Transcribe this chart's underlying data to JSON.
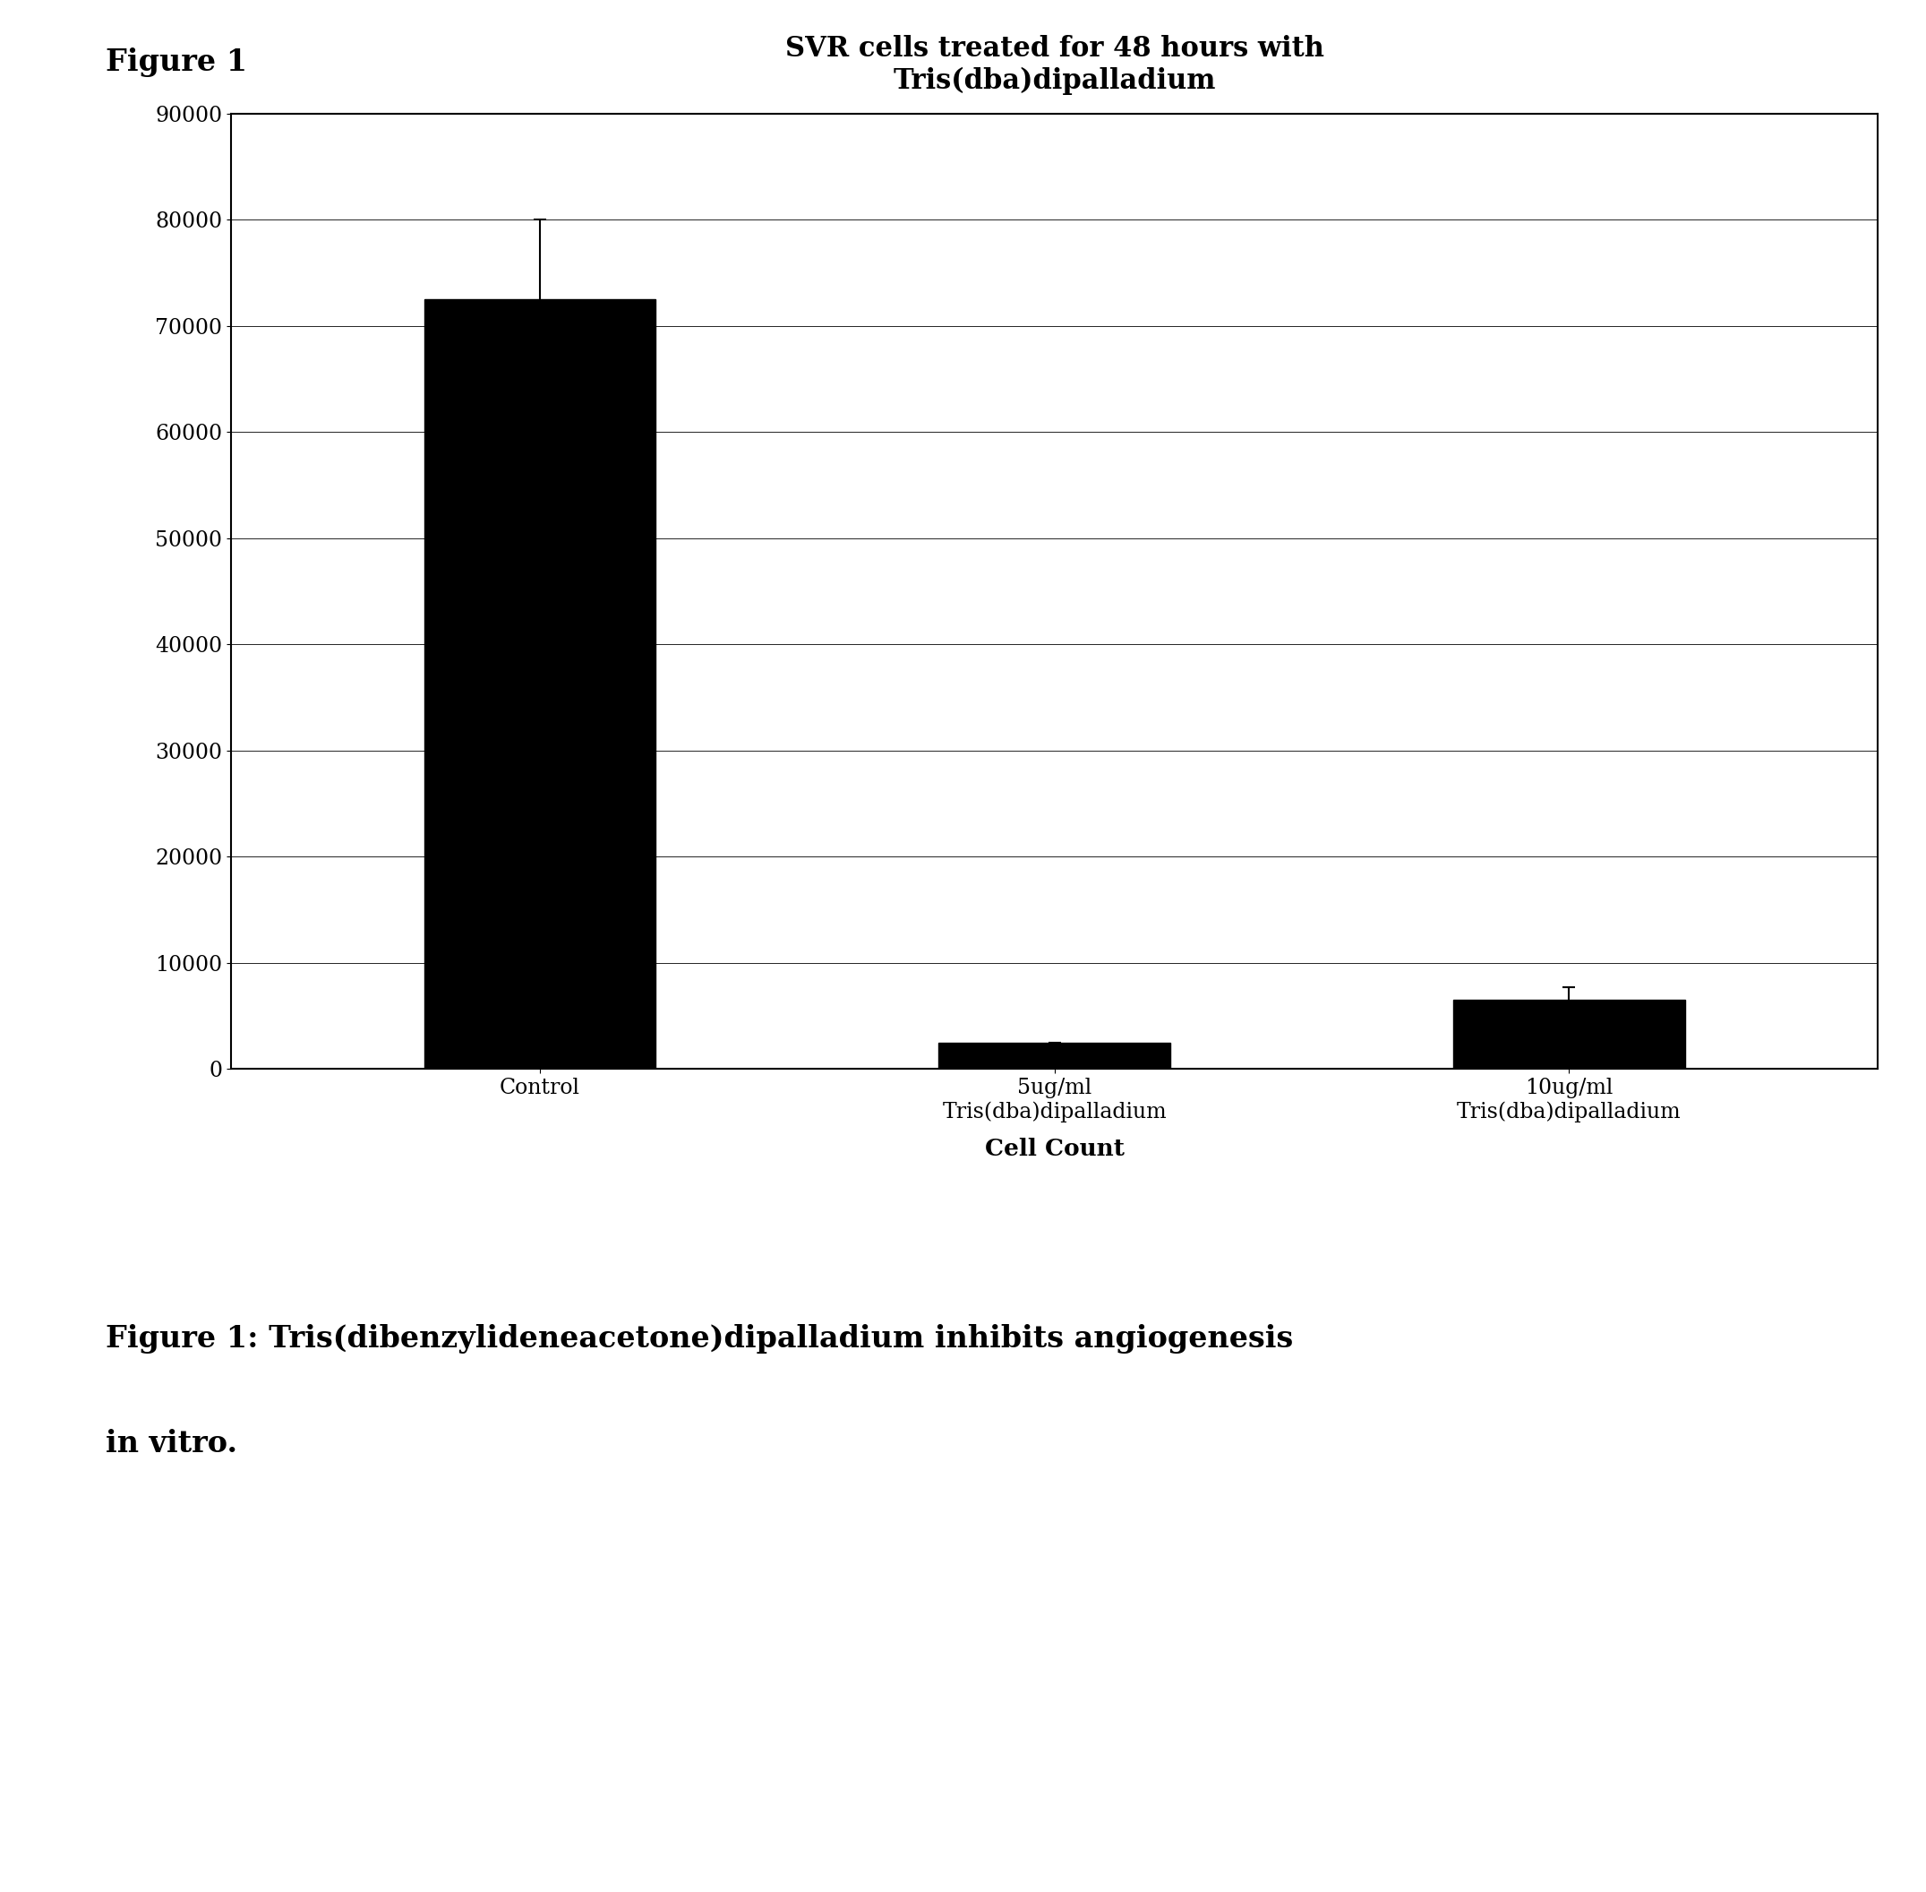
{
  "title": "SVR cells treated for 48 hours with\nTris(dba)dipalladium",
  "xlabel": "Cell Count",
  "categories": [
    "Control",
    "5ug/ml\nTris(dba)dipalladium",
    "10ug/ml\nTris(dba)dipalladium"
  ],
  "values": [
    72500,
    2500,
    6500
  ],
  "errors": [
    7500,
    0,
    1200
  ],
  "bar_color": "#000000",
  "ylim": [
    0,
    90000
  ],
  "yticks": [
    0,
    10000,
    20000,
    30000,
    40000,
    50000,
    60000,
    70000,
    80000,
    90000
  ],
  "figure_label": "Figure 1",
  "caption_line1": "Figure 1: Tris(dibenzylideneacetone)dipalladium inhibits angiogenesis",
  "caption_line2": "in vitro.",
  "title_fontsize": 22,
  "axis_label_fontsize": 19,
  "tick_fontsize": 17,
  "caption_fontsize": 24,
  "figure_label_fontsize": 24,
  "background_color": "#ffffff"
}
